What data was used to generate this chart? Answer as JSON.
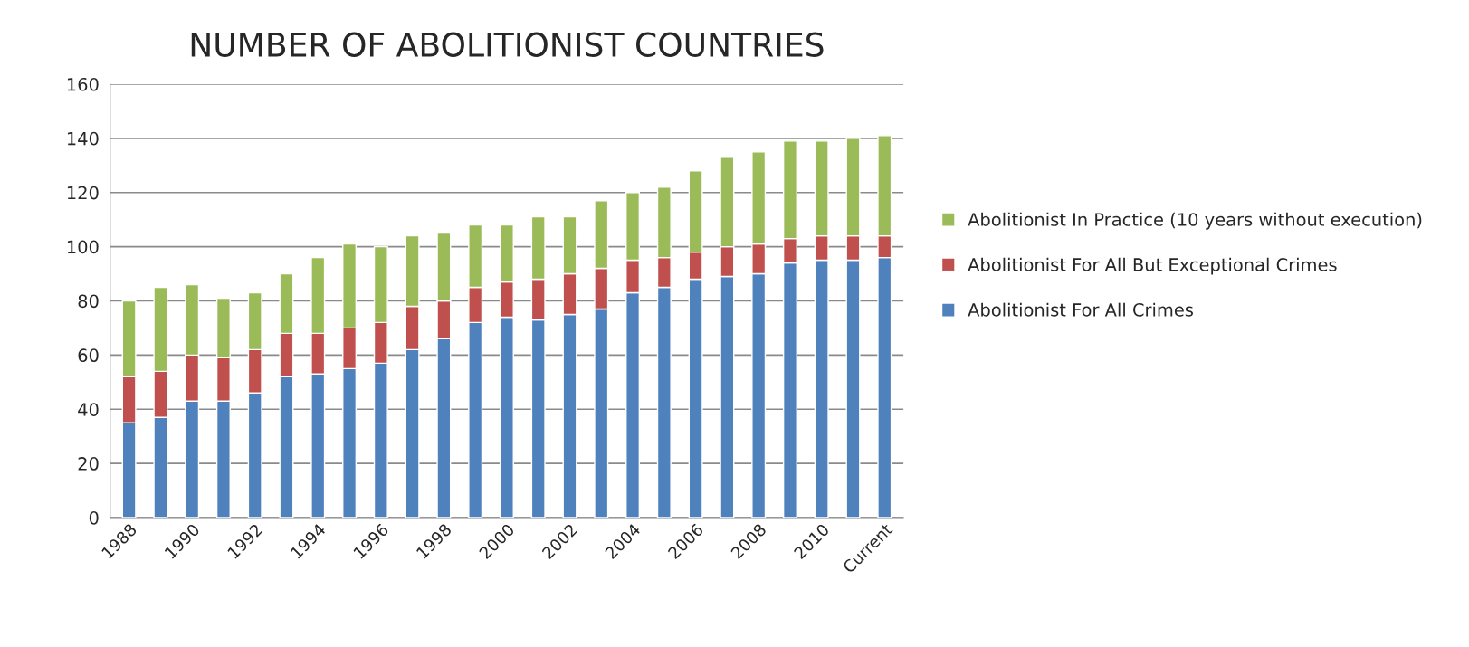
{
  "chart_data": {
    "type": "bar",
    "title": "NUMBER OF ABOLITIONIST COUNTRIES",
    "stacked": true,
    "categories": [
      "1988",
      null,
      "1990",
      null,
      "1992",
      null,
      "1994",
      null,
      "1996",
      null,
      "1998",
      null,
      "2000",
      null,
      "2002",
      null,
      "2004",
      null,
      "2006",
      null,
      "2008",
      null,
      "2010",
      null,
      "Current"
    ],
    "series": [
      {
        "name": "Abolitionist For All Crimes",
        "color": "#4f81bd",
        "values": [
          35,
          37,
          43,
          43,
          46,
          52,
          53,
          55,
          57,
          62,
          66,
          72,
          74,
          73,
          75,
          77,
          83,
          85,
          88,
          89,
          90,
          94,
          95,
          95,
          96
        ]
      },
      {
        "name": "Abolitionist For All But Exceptional Crimes",
        "color": "#c0504d",
        "values": [
          17,
          17,
          17,
          16,
          16,
          16,
          15,
          15,
          15,
          16,
          14,
          13,
          13,
          15,
          15,
          15,
          12,
          11,
          10,
          11,
          11,
          9,
          9,
          9,
          8
        ]
      },
      {
        "name": "Abolitionist In Practice (10 years without execution)",
        "color": "#9bbb59",
        "values": [
          28,
          31,
          26,
          22,
          21,
          22,
          28,
          31,
          28,
          26,
          25,
          23,
          21,
          23,
          21,
          25,
          25,
          26,
          30,
          33,
          34,
          36,
          35,
          36,
          37
        ]
      }
    ],
    "ylim": [
      0,
      160
    ],
    "yticks": [
      0,
      20,
      40,
      60,
      80,
      100,
      120,
      140,
      160
    ],
    "grid": "y",
    "legend": "right"
  }
}
